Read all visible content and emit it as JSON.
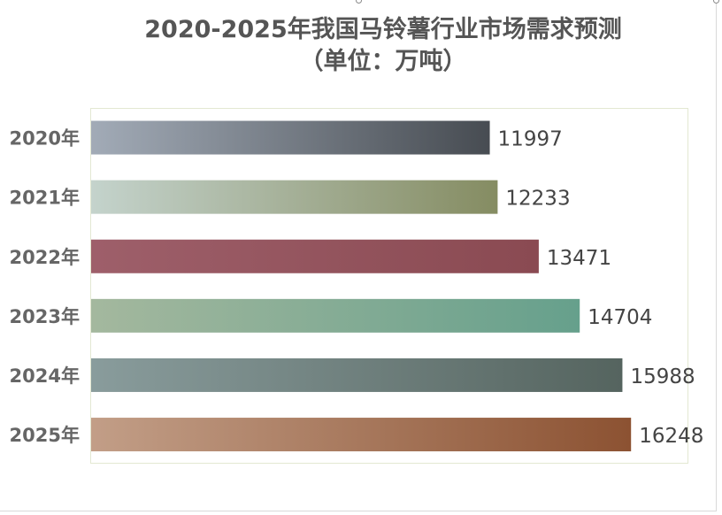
{
  "title": {
    "line1": "2020-2025年我国马铃薯行业市场需求预测",
    "line2": "（单位：万吨）"
  },
  "chart_data": {
    "type": "bar",
    "orientation": "horizontal",
    "title": "2020-2025年我国马铃薯行业市场需求预测（单位：万吨）",
    "categories": [
      "2020年",
      "2021年",
      "2022年",
      "2023年",
      "2024年",
      "2025年"
    ],
    "values": [
      11997,
      12233,
      13471,
      14704,
      15988,
      16248
    ],
    "xlim": [
      0,
      18000
    ],
    "grid": false,
    "legend": "none",
    "data_labels": true,
    "bar_colors": [
      [
        "#a2abb7",
        "#474c52"
      ],
      [
        "#c4d3cc",
        "#858c62"
      ],
      [
        "#9e5f6a",
        "#8a4a52"
      ],
      [
        "#a4b89e",
        "#66a08c"
      ],
      [
        "#899c9c",
        "#55645f"
      ],
      [
        "#c29e87",
        "#8c5232"
      ]
    ]
  }
}
